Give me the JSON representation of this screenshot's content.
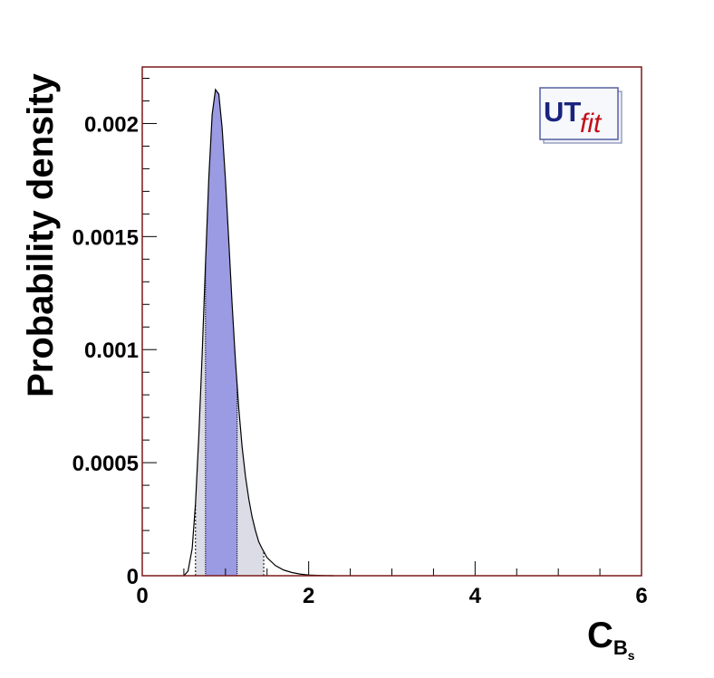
{
  "chart_data": {
    "type": "area",
    "title": "",
    "xlabel": "C",
    "xlabel_subscript": "B",
    "xlabel_subsubscript": "s",
    "ylabel": "Probability density",
    "xlim": [
      0,
      6
    ],
    "ylim": [
      0,
      0.00225
    ],
    "x_ticks": [
      0,
      2,
      4,
      6
    ],
    "x_tick_labels": [
      "0",
      "2",
      "4",
      "6"
    ],
    "y_ticks": [
      0,
      0.0005,
      0.001,
      0.0015,
      0.002
    ],
    "y_tick_labels": [
      "0",
      "0.0005",
      "0.001",
      "0.0015",
      "0.002"
    ],
    "grid": false,
    "legend": "none",
    "series": [
      {
        "x": [
          0.5,
          0.55,
          0.6,
          0.64,
          0.68,
          0.72,
          0.76,
          0.8,
          0.84,
          0.88,
          0.92,
          0.96,
          1.0,
          1.04,
          1.08,
          1.12,
          1.16,
          1.2,
          1.24,
          1.28,
          1.32,
          1.36,
          1.4,
          1.44,
          1.5,
          1.6,
          1.7,
          1.8,
          1.9,
          2.0,
          2.1,
          2.2,
          2.3
        ],
        "y": [
          0.0,
          2e-05,
          0.00012,
          0.00032,
          0.00062,
          0.00098,
          0.00138,
          0.00176,
          0.00204,
          0.00215,
          0.00213,
          0.00198,
          0.00175,
          0.00148,
          0.0012,
          0.00095,
          0.00074,
          0.00057,
          0.00044,
          0.00034,
          0.00026,
          0.0002,
          0.00015,
          0.00012,
          8e-05,
          4.5e-05,
          2.5e-05,
          1.4e-05,
          7e-06,
          3e-06,
          1.5e-06,
          5e-07,
          0.0
        ]
      }
    ],
    "intervals": {
      "inner_68": [
        0.76,
        1.14
      ],
      "outer_95": [
        0.64,
        1.46
      ]
    },
    "colors": {
      "curve": "#000000",
      "inner_fill": "#9b9be3",
      "outer_fill": "#dcdce6",
      "frame": "#7a1a1a"
    }
  },
  "logo": {
    "text_main": "UT",
    "text_script": "fit",
    "main_color": "#1a237e",
    "script_color": "#c0101a"
  }
}
